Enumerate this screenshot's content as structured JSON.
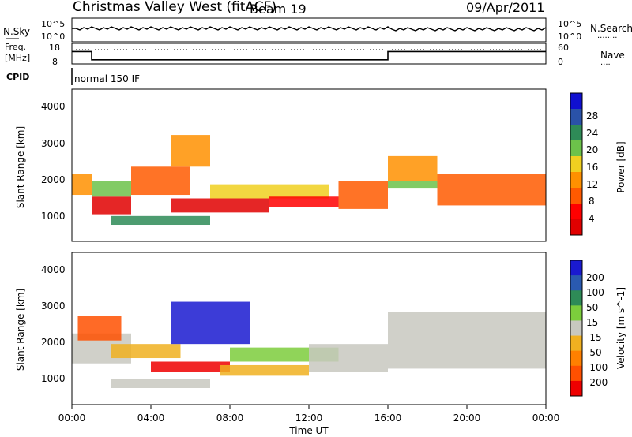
{
  "header": {
    "title": "Christmas Valley West (fitACF)",
    "beam": "Beam 19",
    "date": "09/Apr/2011"
  },
  "noise_panel": {
    "left_label": "N.Sky",
    "left_ticks": [
      "10^5",
      "10^0"
    ],
    "right_ticks": [
      "10^5",
      "10^0"
    ],
    "right_label": "N.Search",
    "right_label_dots": "........"
  },
  "freq_panel": {
    "label_line1": "Freq.",
    "label_line2": "[MHz]",
    "left_ticks": [
      "18",
      "8"
    ],
    "right_ticks": [
      "60",
      "0"
    ],
    "right_label": "Nave",
    "right_label_dots": "....",
    "freq_steps": [
      {
        "start_h": 0,
        "end_h": 1.0,
        "mhz": 14
      },
      {
        "start_h": 1.0,
        "end_h": 16.0,
        "mhz": 10
      },
      {
        "start_h": 16.0,
        "end_h": 24.0,
        "mhz": 14
      }
    ]
  },
  "cpid": {
    "label": "CPID",
    "mode": "normal 150 IF"
  },
  "power_panel": {
    "ylabel": "Slant Range [km]",
    "yticks": [
      "4000",
      "3000",
      "2000",
      "1000"
    ],
    "colorbar_label": "Power [dB]",
    "colorbar_ticks": [
      "28",
      "24",
      "20",
      "16",
      "12",
      "8",
      "4"
    ],
    "colors": [
      "#1010d0",
      "#2a52a8",
      "#2e8b57",
      "#6cc24a",
      "#f0d020",
      "#ff9000",
      "#ff5a00",
      "#ff0000",
      "#e00000"
    ]
  },
  "velocity_panel": {
    "ylabel": "Slant Range [km]",
    "yticks": [
      "4000",
      "3000",
      "2000",
      "1000"
    ],
    "colorbar_label": "Velocity [m s^-1]",
    "colorbar_ticks": [
      "200",
      "100",
      "50",
      "15",
      "-15",
      "-50",
      "-100",
      "-200"
    ],
    "colors": [
      "#1a1ad0",
      "#2a5ab0",
      "#2e8b57",
      "#7ccd3c",
      "#c8c8c0",
      "#f0b020",
      "#ff8000",
      "#ff5000",
      "#ee0000"
    ]
  },
  "time_axis": {
    "label": "Time UT",
    "ticks": [
      "00:00",
      "04:00",
      "08:00",
      "12:00",
      "16:00",
      "20:00",
      "00:00"
    ]
  },
  "chart_data": {
    "type": "heatmap",
    "x_range_hours": [
      0,
      24
    ],
    "y_range_km": [
      180,
      4500
    ],
    "power_regions": [
      {
        "t0": 0.0,
        "t1": 1.0,
        "r0": 1500,
        "r1": 2100,
        "level": 5
      },
      {
        "t0": 1.0,
        "t1": 3.0,
        "r0": 950,
        "r1": 1450,
        "level": 8
      },
      {
        "t0": 1.0,
        "t1": 3.0,
        "r0": 1450,
        "r1": 1900,
        "level": 3
      },
      {
        "t0": 3.0,
        "t1": 6.0,
        "r0": 1500,
        "r1": 2300,
        "level": 6
      },
      {
        "t0": 5.0,
        "t1": 7.0,
        "r0": 2300,
        "r1": 3200,
        "level": 5
      },
      {
        "t0": 2.0,
        "t1": 7.0,
        "r0": 650,
        "r1": 900,
        "level": 2
      },
      {
        "t0": 5.0,
        "t1": 10.0,
        "r0": 1000,
        "r1": 1400,
        "level": 8
      },
      {
        "t0": 7.0,
        "t1": 13.0,
        "r0": 1400,
        "r1": 1800,
        "level": 4
      },
      {
        "t0": 10.0,
        "t1": 13.5,
        "r0": 1150,
        "r1": 1450,
        "level": 7
      },
      {
        "t0": 13.5,
        "t1": 16.0,
        "r0": 1100,
        "r1": 1900,
        "level": 6
      },
      {
        "t0": 16.0,
        "t1": 18.5,
        "r0": 1900,
        "r1": 2600,
        "level": 5
      },
      {
        "t0": 16.0,
        "t1": 18.5,
        "r0": 1700,
        "r1": 1900,
        "level": 3
      },
      {
        "t0": 18.5,
        "t1": 24.0,
        "r0": 1200,
        "r1": 2100,
        "level": 6
      }
    ],
    "velocity_regions": [
      {
        "t0": 0.0,
        "t1": 3.0,
        "r0": 1350,
        "r1": 2200,
        "level": 4
      },
      {
        "t0": 0.3,
        "t1": 2.5,
        "r0": 2000,
        "r1": 2700,
        "level": 7
      },
      {
        "t0": 2.0,
        "t1": 5.5,
        "r0": 1500,
        "r1": 1900,
        "level": 5
      },
      {
        "t0": 5.0,
        "t1": 9.0,
        "r0": 1900,
        "r1": 3100,
        "level": 0
      },
      {
        "t0": 4.0,
        "t1": 8.0,
        "r0": 1100,
        "r1": 1400,
        "level": 8
      },
      {
        "t0": 8.0,
        "t1": 13.5,
        "r0": 1400,
        "r1": 1800,
        "level": 3
      },
      {
        "t0": 7.5,
        "t1": 12.0,
        "r0": 1000,
        "r1": 1300,
        "level": 5
      },
      {
        "t0": 12.0,
        "t1": 16.0,
        "r0": 1100,
        "r1": 1900,
        "level": 4
      },
      {
        "t0": 2.0,
        "t1": 7.0,
        "r0": 650,
        "r1": 900,
        "level": 4
      },
      {
        "t0": 16.0,
        "t1": 24.0,
        "r0": 1200,
        "r1": 2800,
        "level": 4
      }
    ]
  }
}
